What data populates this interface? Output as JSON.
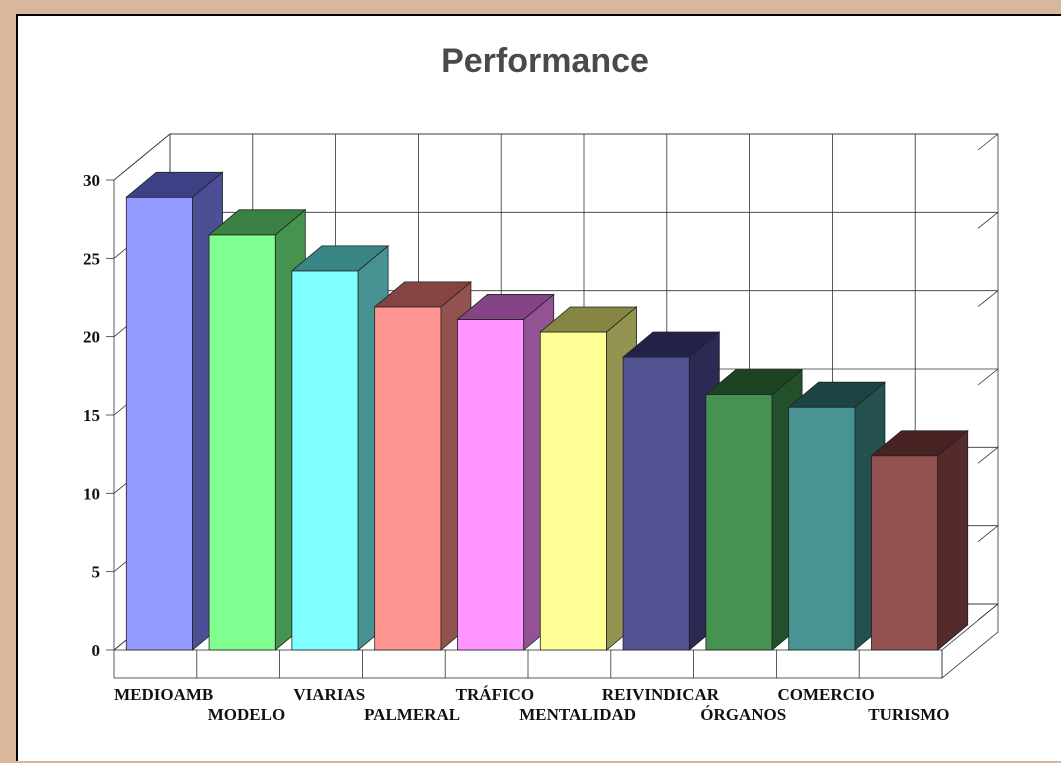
{
  "chart_data": {
    "type": "bar",
    "title": "Performance",
    "xlabel": "",
    "ylabel": "",
    "categories": [
      "MEDIOAMB",
      "MODELO",
      "VIARIAS",
      "PALMERAL",
      "TRÁFICO",
      "MENTALIDAD",
      "REIVINDICAR",
      "ÓRGANOS",
      "COMERCIO",
      "TURISMO"
    ],
    "values": [
      28.9,
      26.5,
      24.2,
      21.9,
      21.1,
      20.3,
      18.7,
      16.3,
      15.5,
      12.4
    ],
    "ylim": [
      0,
      30
    ],
    "yticks": [
      0,
      5,
      10,
      15,
      20,
      25,
      30
    ],
    "grid": true,
    "legend": "none",
    "three_d": true,
    "colors": [
      {
        "front": "#9399ff",
        "side": "#4c4f96",
        "top": "#3e4086"
      },
      {
        "front": "#80ff90",
        "side": "#46924f",
        "top": "#3a8244"
      },
      {
        "front": "#80ffff",
        "side": "#479393",
        "top": "#3a8585"
      },
      {
        "front": "#ff9590",
        "side": "#935250",
        "top": "#854443"
      },
      {
        "front": "#ff95ff",
        "side": "#935293",
        "top": "#854485"
      },
      {
        "front": "#ffff95",
        "side": "#939352",
        "top": "#858544"
      },
      {
        "front": "#525293",
        "side": "#2a2a55",
        "top": "#222248"
      },
      {
        "front": "#469250",
        "side": "#22502a",
        "top": "#1c4422"
      },
      {
        "front": "#489393",
        "side": "#245050",
        "top": "#1c4444"
      },
      {
        "front": "#935250",
        "side": "#552a2a",
        "top": "#482222"
      }
    ]
  }
}
